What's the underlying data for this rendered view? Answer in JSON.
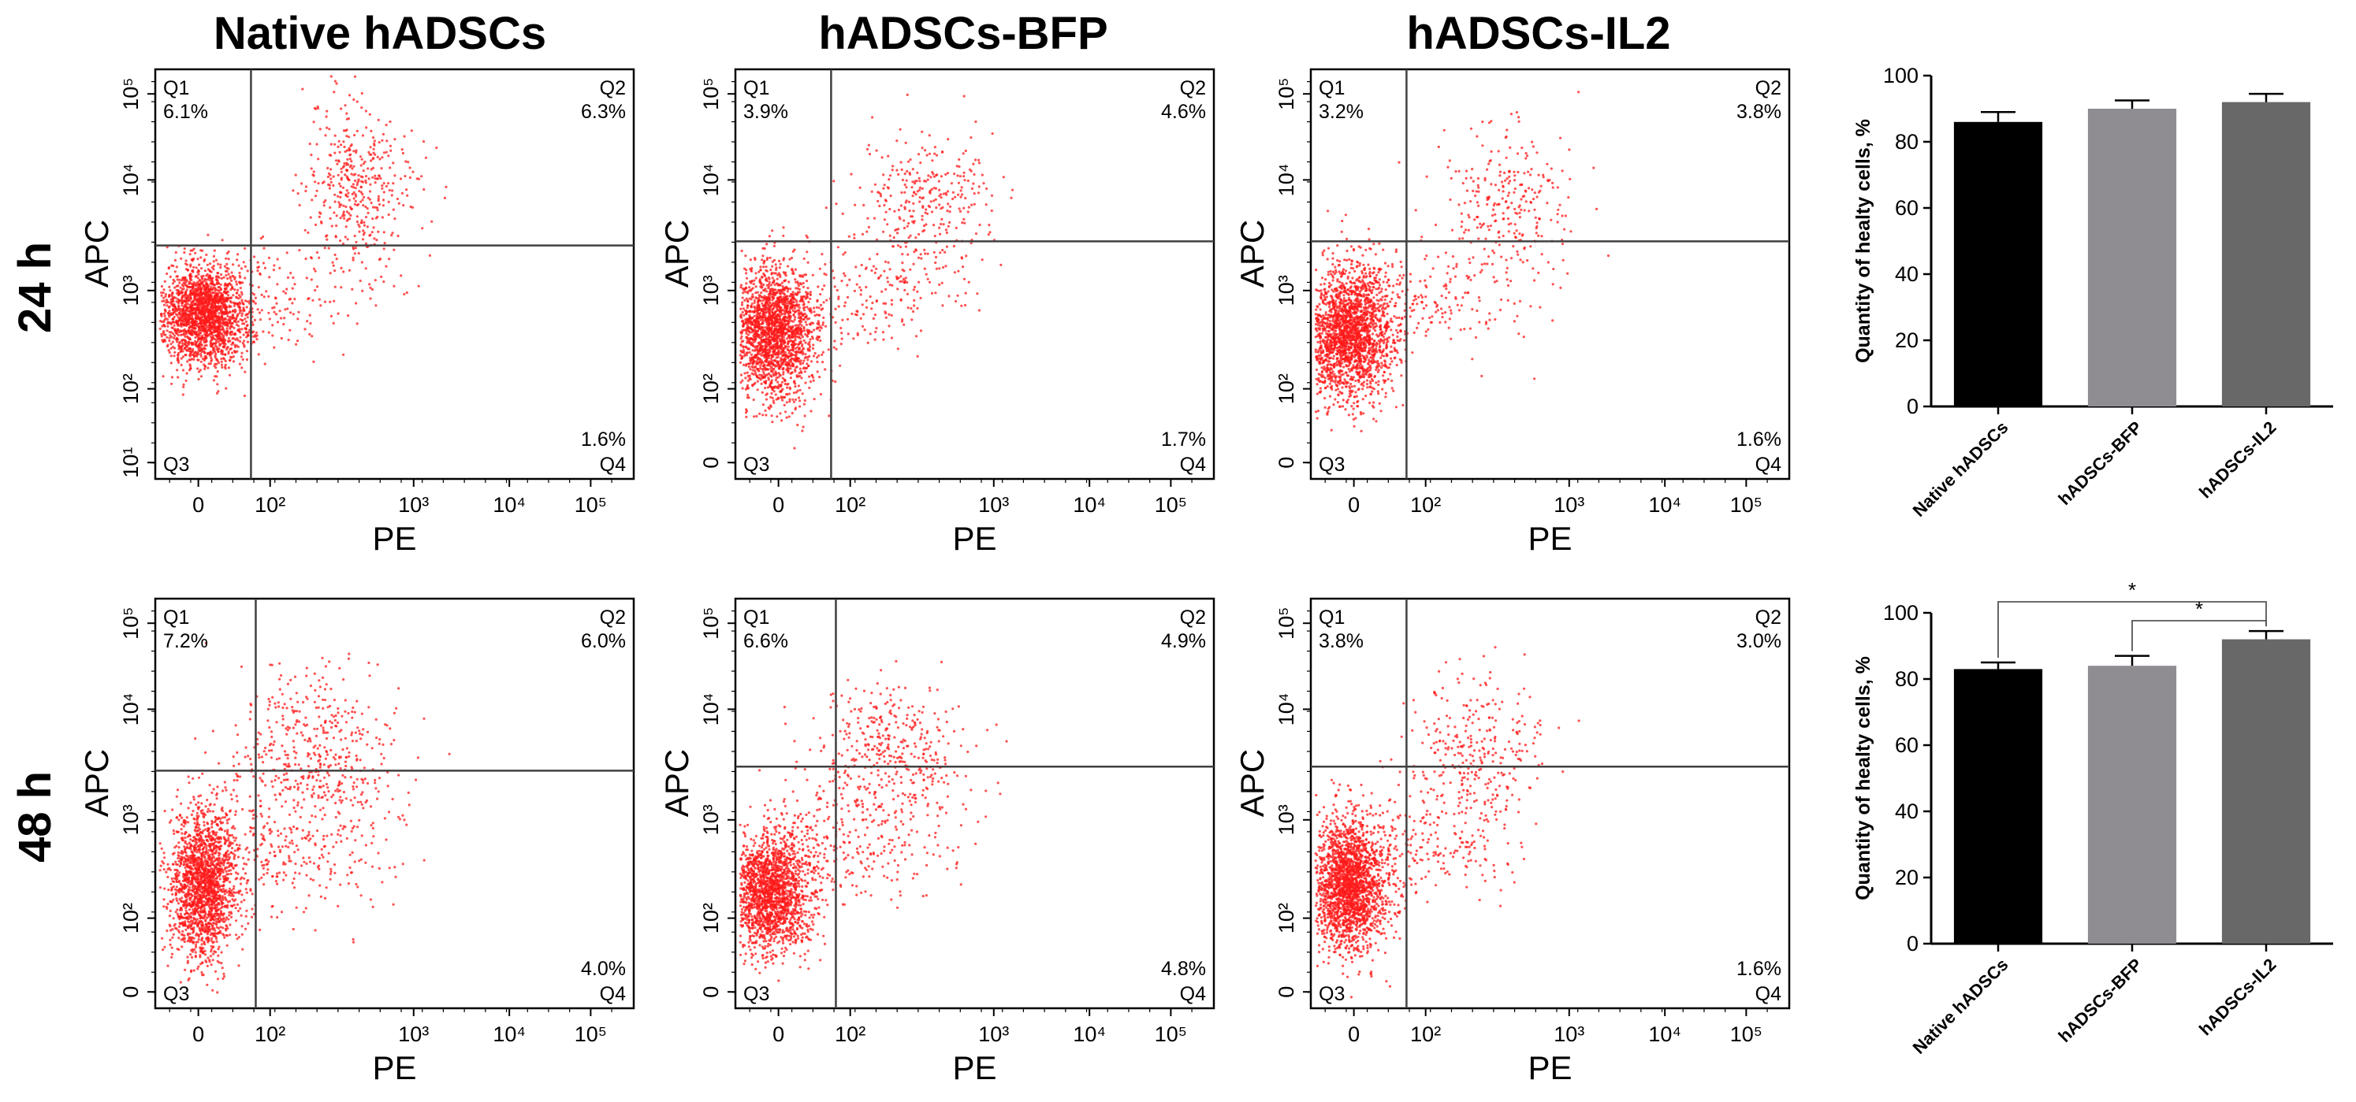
{
  "column_titles": [
    "Native hADSCs",
    "hADSCs-BFP",
    "hADSCs-IL2"
  ],
  "row_titles": [
    "24 h",
    "48 h"
  ],
  "colors": {
    "dots": "#ff1a1a",
    "axis": "#000000",
    "gate": "#404040",
    "bar_native": "#000000",
    "bar_bfp": "#8f8c92",
    "bar_il2": "#686868"
  },
  "chart_data": [
    {
      "type": "scatter",
      "panel": "24h-native-hADSCs",
      "xlabel": "PE",
      "ylabel": "APC",
      "xticks": [
        "0",
        "10²",
        "10³",
        "10⁴",
        "10⁵"
      ],
      "yticks": [
        "10¹",
        "10²",
        "10³",
        "10⁴",
        "10⁵"
      ],
      "quadrants": {
        "Q1": "6.1%",
        "Q2": "6.3%",
        "Q3": "",
        "Q4": "1.6%"
      }
    },
    {
      "type": "scatter",
      "panel": "24h-hADSCs-BFP",
      "xlabel": "PE",
      "ylabel": "APC",
      "xticks": [
        "0",
        "10²",
        "10³",
        "10⁴",
        "10⁵"
      ],
      "yticks": [
        "0",
        "10²",
        "10³",
        "10⁴",
        "10⁵"
      ],
      "quadrants": {
        "Q1": "3.9%",
        "Q2": "4.6%",
        "Q3": "",
        "Q4": "1.7%"
      }
    },
    {
      "type": "scatter",
      "panel": "24h-hADSCs-IL2",
      "xlabel": "PE",
      "ylabel": "APC",
      "xticks": [
        "0",
        "10²",
        "10³",
        "10⁴",
        "10⁵"
      ],
      "yticks": [
        "0",
        "10²",
        "10³",
        "10⁴",
        "10⁵"
      ],
      "quadrants": {
        "Q1": "3.2%",
        "Q2": "3.8%",
        "Q3": "",
        "Q4": "1.6%"
      }
    },
    {
      "type": "scatter",
      "panel": "48h-native-hADSCs",
      "xlabel": "PE",
      "ylabel": "APC",
      "xticks": [
        "0",
        "10²",
        "10³",
        "10⁴",
        "10⁵"
      ],
      "yticks": [
        "0",
        "10²",
        "10³",
        "10⁴",
        "10⁵"
      ],
      "quadrants": {
        "Q1": "7.2%",
        "Q2": "6.0%",
        "Q3": "",
        "Q4": "4.0%"
      }
    },
    {
      "type": "scatter",
      "panel": "48h-hADSCs-BFP",
      "xlabel": "PE",
      "ylabel": "APC",
      "xticks": [
        "0",
        "10²",
        "10³",
        "10⁴",
        "10⁵"
      ],
      "yticks": [
        "0",
        "10²",
        "10³",
        "10⁴",
        "10⁵"
      ],
      "quadrants": {
        "Q1": "6.6%",
        "Q2": "4.9%",
        "Q3": "",
        "Q4": "4.8%"
      }
    },
    {
      "type": "scatter",
      "panel": "48h-hADSCs-IL2",
      "xlabel": "PE",
      "ylabel": "APC",
      "xticks": [
        "0",
        "10²",
        "10³",
        "10⁴",
        "10⁵"
      ],
      "yticks": [
        "0",
        "10²",
        "10³",
        "10⁴",
        "10⁵"
      ],
      "quadrants": {
        "Q1": "3.8%",
        "Q2": "3.0%",
        "Q3": "",
        "Q4": "1.6%"
      }
    },
    {
      "type": "bar",
      "panel": "24h-summary",
      "categories": [
        "Native hADSCs",
        "hADSCs-BFP",
        "hADSCs-IL2"
      ],
      "values": [
        86,
        90,
        92
      ],
      "errors": [
        3,
        2.5,
        2.5
      ],
      "ylabel": "Quantity of healty cells, %",
      "ylim": [
        0,
        100
      ],
      "yticks": [
        "0",
        "20",
        "40",
        "60",
        "80",
        "100"
      ],
      "significance": []
    },
    {
      "type": "bar",
      "panel": "48h-summary",
      "categories": [
        "Native hADSCs",
        "hADSCs-BFP",
        "hADSCs-IL2"
      ],
      "values": [
        83,
        84,
        92
      ],
      "errors": [
        2,
        3,
        2.5
      ],
      "ylabel": "Quantity of healty cells, %",
      "ylim": [
        0,
        100
      ],
      "yticks": [
        "0",
        "20",
        "40",
        "60",
        "80",
        "100"
      ],
      "significance": [
        {
          "from": 0,
          "to": 2,
          "label": "*"
        },
        {
          "from": 1,
          "to": 2,
          "label": "*"
        }
      ]
    }
  ]
}
